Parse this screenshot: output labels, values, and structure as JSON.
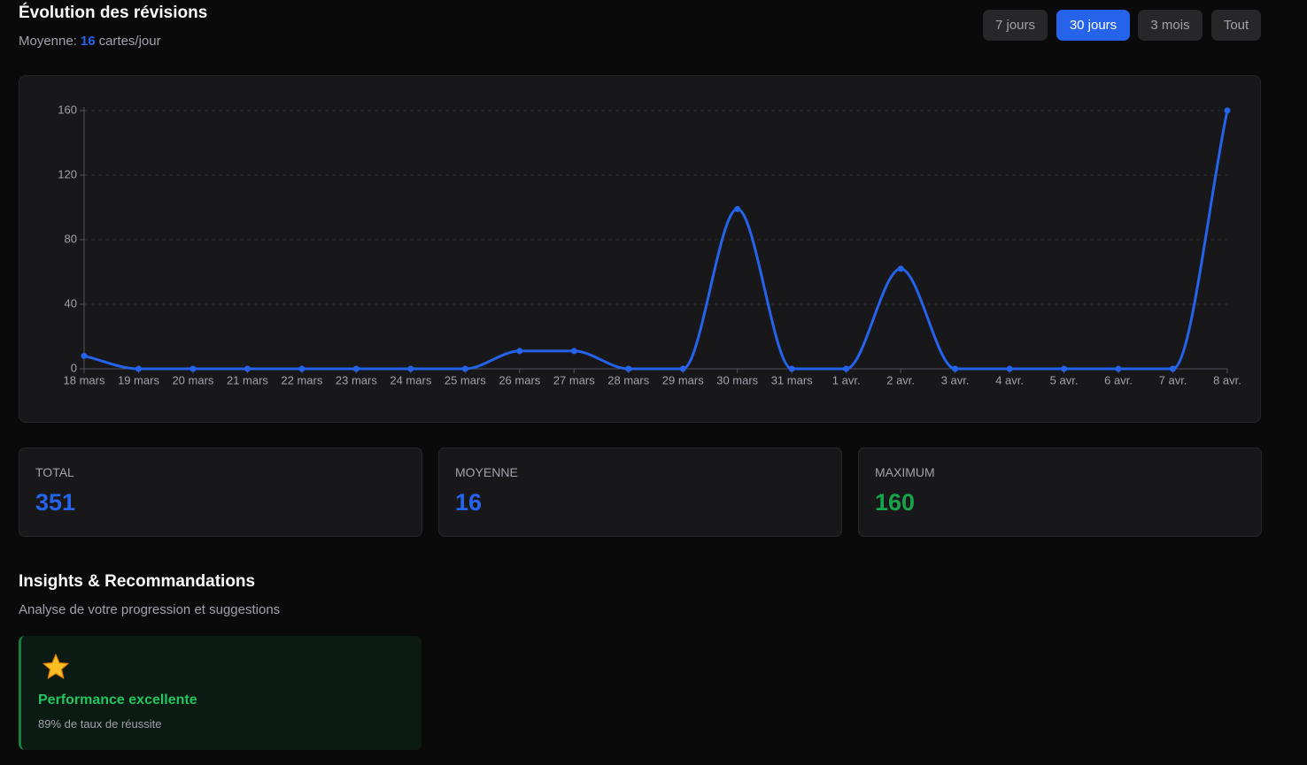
{
  "header": {
    "title": "Évolution des révisions",
    "average_label": "Moyenne:",
    "average_value": "16",
    "average_unit": "cartes/jour"
  },
  "buttons": [
    {
      "label": "7 jours",
      "active": false
    },
    {
      "label": "30 jours",
      "active": true
    },
    {
      "label": "3 mois",
      "active": false
    },
    {
      "label": "Tout",
      "active": false
    }
  ],
  "chart_data": {
    "type": "line",
    "categories": [
      "18 mars",
      "19 mars",
      "20 mars",
      "21 mars",
      "22 mars",
      "23 mars",
      "24 mars",
      "25 mars",
      "26 mars",
      "27 mars",
      "28 mars",
      "29 mars",
      "30 mars",
      "31 mars",
      "1 avr.",
      "2 avr.",
      "3 avr.",
      "4 avr.",
      "5 avr.",
      "6 avr.",
      "7 avr.",
      "8 avr."
    ],
    "values": [
      8,
      0,
      0,
      0,
      0,
      0,
      0,
      0,
      11,
      11,
      0,
      0,
      99,
      0,
      0,
      62,
      0,
      0,
      0,
      0,
      0,
      160
    ],
    "color": "#2563eb",
    "ylim": [
      0,
      160
    ],
    "yticks": [
      0,
      40,
      80,
      120,
      160
    ],
    "grid": true
  },
  "stats": [
    {
      "label": "TOTAL",
      "value": "351",
      "color": "#2563eb"
    },
    {
      "label": "MOYENNE",
      "value": "16",
      "color": "#2563eb"
    },
    {
      "label": "MAXIMUM",
      "value": "160",
      "color": "#16a34a"
    }
  ],
  "insights": {
    "title": "Insights & Recommandations",
    "subtitle": "Analyse de votre progression et suggestions",
    "cards": [
      {
        "title": "Performance excellente",
        "text": "89% de taux de réussite"
      }
    ]
  }
}
